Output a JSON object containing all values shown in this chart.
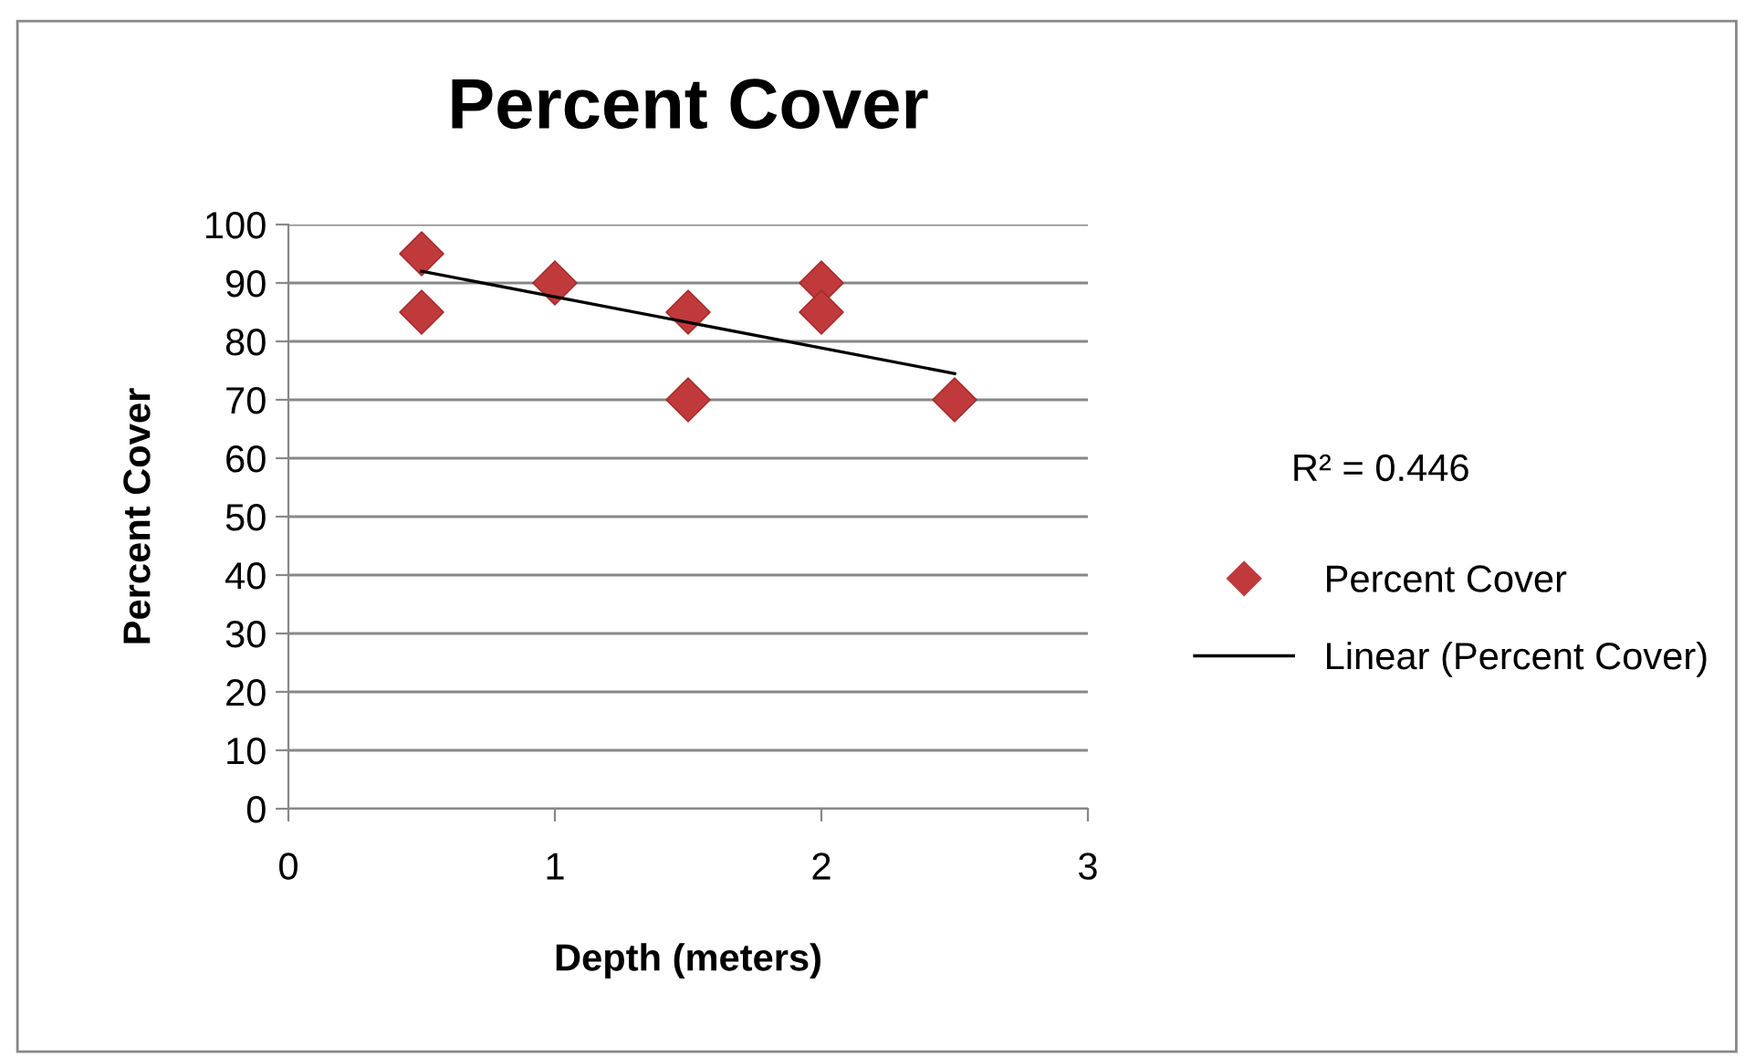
{
  "chart_data": {
    "type": "scatter",
    "title": "Percent Cover",
    "xlabel": "Depth (meters)",
    "ylabel": "Percent Cover",
    "series": [
      {
        "name": "Percent Cover",
        "color": "#c0393b",
        "marker": "diamond",
        "x": [
          0.5,
          0.5,
          1,
          1.5,
          1.5,
          2,
          2,
          2.5
        ],
        "values": [
          95,
          85,
          90,
          85,
          70,
          90,
          85,
          70
        ]
      },
      {
        "name": "Linear (Percent Cover)",
        "type": "line",
        "color": "#000000",
        "marker": "none",
        "line_style": "solid",
        "x": [
          0.5,
          2.5
        ],
        "values": [
          92,
          74.5
        ]
      }
    ],
    "annotations": [
      "R² = 0.446"
    ],
    "xlim": [
      0,
      3
    ],
    "xticks": [
      0,
      1,
      2,
      3
    ],
    "ylim": [
      0,
      100
    ],
    "yticks": [
      0,
      10,
      20,
      30,
      40,
      50,
      60,
      70,
      80,
      90,
      100
    ],
    "grid": "y",
    "legend": "right"
  }
}
